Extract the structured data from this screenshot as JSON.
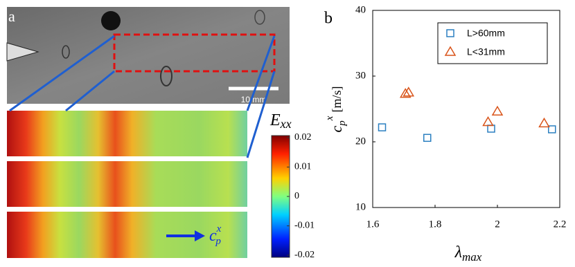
{
  "panel_a": {
    "label": "a",
    "scale_bar": "10 mm",
    "arrow_label": {
      "base": "c",
      "sub": "p",
      "sup": "x"
    },
    "colorbar": {
      "label": {
        "base": "E",
        "sub": "xx"
      },
      "clim": [
        -0.02,
        0.02
      ],
      "ticks": [
        0.02,
        0.01,
        0,
        -0.01,
        -0.02
      ]
    }
  },
  "chart_data": {
    "type": "scatter",
    "panel_label": "b",
    "xlabel": {
      "base": "λ",
      "sub": "max"
    },
    "ylabel": {
      "base": "c",
      "sub": "p",
      "sup": "x",
      "unit": "[m/s]"
    },
    "xlim": [
      1.6,
      2.2
    ],
    "xticks": [
      1.6,
      1.8,
      2,
      2.2
    ],
    "ylim": [
      10,
      40
    ],
    "yticks": [
      10,
      20,
      30,
      40
    ],
    "legend": "upper right",
    "series": [
      {
        "name": "L>60mm",
        "marker": "square",
        "color": "#2a7fc0",
        "x": [
          1.63,
          1.775,
          1.98,
          2.175
        ],
        "values": [
          22.2,
          20.6,
          22.0,
          21.9
        ]
      },
      {
        "name": "L<31mm",
        "marker": "triangle",
        "color": "#d9541a",
        "x": [
          1.705,
          1.715,
          1.97,
          2.0,
          2.15
        ],
        "values": [
          27.3,
          27.5,
          23.0,
          24.6,
          22.8
        ]
      }
    ]
  }
}
